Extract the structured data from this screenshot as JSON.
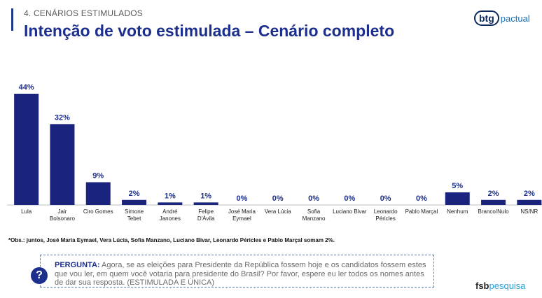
{
  "header": {
    "section": "4. CENÁRIOS ESTIMULADOS",
    "title": "Intenção de voto estimulada – Cenário completo"
  },
  "logos": {
    "btg_mark": "btg",
    "btg_sub": "pactual",
    "fsb_main": "fsb",
    "fsb_accent": "pesquisa"
  },
  "colors": {
    "bar": "#1a237e",
    "title": "#1c2f8c"
  },
  "chart_data": {
    "type": "bar",
    "categories": [
      "Lula",
      "Jair Bolsonaro",
      "Ciro Gomes",
      "Simone Tebet",
      "André Janones",
      "Felipe D'Ávila",
      "José Maria Eymael",
      "Vera Lúcia",
      "Sofia Manzano",
      "Luciano Bivar",
      "Leonardo Péricles",
      "Pablo Marçal",
      "Nenhum",
      "Branco/Nulo",
      "NS/NR"
    ],
    "category_lines": [
      [
        "Lula"
      ],
      [
        "Jair",
        "Bolsonaro"
      ],
      [
        "Ciro Gomes"
      ],
      [
        "Simone",
        "Tebet"
      ],
      [
        "André",
        "Janones"
      ],
      [
        "Felipe",
        "D'Ávila"
      ],
      [
        "José Maria",
        "Eymael"
      ],
      [
        "Vera Lúcia"
      ],
      [
        "Sofia",
        "Manzano"
      ],
      [
        "Luciano Bivar"
      ],
      [
        "Leonardo",
        "Péricles"
      ],
      [
        "Pablo Marçal"
      ],
      [
        "Nenhum"
      ],
      [
        "Branco/Nulo"
      ],
      [
        "NS/NR"
      ]
    ],
    "values": [
      44,
      32,
      9,
      2,
      1,
      1,
      0,
      0,
      0,
      0,
      0,
      0,
      5,
      2,
      2
    ],
    "labels": [
      "44%",
      "32%",
      "9%",
      "2%",
      "1%",
      "1%",
      "0%",
      "0%",
      "0%",
      "0%",
      "0%",
      "0%",
      "5%",
      "2%",
      "2%"
    ],
    "ylim": [
      0,
      44
    ],
    "grid": false,
    "legend": "none"
  },
  "note": "*Obs.: juntos, José Maria Eymael, Vera Lúcia, Sofia Manzano, Luciano Bivar, Leonardo Péricles e Pablo Marçal somam 2%.",
  "question": {
    "icon": "?",
    "icon_name": "question-mark-icon",
    "label": "PERGUNTA:",
    "text": "Agora, se as eleições para Presidente da República fossem hoje e os candidatos fossem estes que vou ler, em quem você votaria para presidente do Brasil? Por favor, espere eu ler todos os nomes antes de dar sua resposta. (ESTIMULADA E ÚNICA)"
  }
}
